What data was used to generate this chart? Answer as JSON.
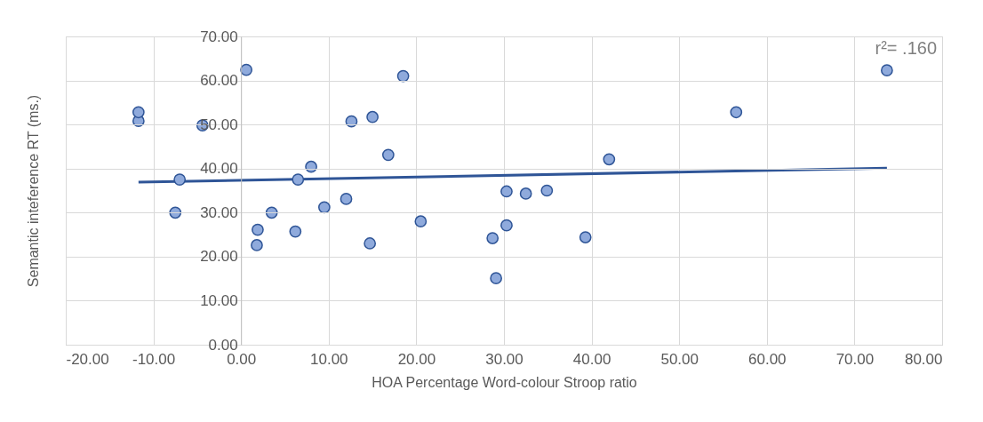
{
  "chart_data": {
    "type": "scatter",
    "xlabel": "HOA Percentage Word-colour Stroop ratio",
    "ylabel": "Semantic inteference RT (ms.)",
    "annotations": [
      "r²= .160"
    ],
    "xlim": [
      -20,
      80
    ],
    "xticks": [
      {
        "value": -20,
        "label": "-20.00"
      },
      {
        "value": -10,
        "label": "-10.00"
      },
      {
        "value": 0,
        "label": "0.00"
      },
      {
        "value": 10,
        "label": "10.00"
      },
      {
        "value": 20,
        "label": "20.00"
      },
      {
        "value": 30,
        "label": "30.00"
      },
      {
        "value": 40,
        "label": "40.00"
      },
      {
        "value": 50,
        "label": "50.00"
      },
      {
        "value": 60,
        "label": "60.00"
      },
      {
        "value": 70,
        "label": "70.00"
      },
      {
        "value": 80,
        "label": "80.00"
      }
    ],
    "ylim": [
      0,
      70
    ],
    "yticks": [
      {
        "value": 0,
        "label": "0.00"
      },
      {
        "value": 10,
        "label": "10.00"
      },
      {
        "value": 20,
        "label": "20.00"
      },
      {
        "value": 30,
        "label": "30.00"
      },
      {
        "value": 40,
        "label": "40.00"
      },
      {
        "value": 50,
        "label": "50.00"
      },
      {
        "value": 60,
        "label": "60.00"
      },
      {
        "value": 70,
        "label": "70.00"
      }
    ],
    "grid": true,
    "marker": "circle",
    "series": [
      {
        "type": "scatter",
        "color": "#8faadc",
        "x": [
          -11.7,
          -11.7,
          -4.4,
          -7.0,
          -7.5,
          0.6,
          1.9,
          1.8,
          3.5,
          6.2,
          6.5,
          8.0,
          9.5,
          12.0,
          12.6,
          15.0,
          14.7,
          16.8,
          18.5,
          20.5,
          30.3,
          32.5,
          34.9,
          30.3,
          28.7,
          29.1,
          39.3,
          42.0,
          56.5,
          73.7
        ],
        "values": [
          50.8,
          52.8,
          49.8,
          37.5,
          30.0,
          62.4,
          26.1,
          22.6,
          30.0,
          25.7,
          37.5,
          40.4,
          31.2,
          33.1,
          50.7,
          51.7,
          23.0,
          43.1,
          61.0,
          28.0,
          34.8,
          34.3,
          35.0,
          27.1,
          24.2,
          15.1,
          24.4,
          42.1,
          52.8,
          62.3
        ]
      },
      {
        "type": "line",
        "marker": "none",
        "color": "#2f5597",
        "x": [
          -11.7,
          73.7
        ],
        "values": [
          36.9,
          40.1
        ]
      }
    ]
  }
}
